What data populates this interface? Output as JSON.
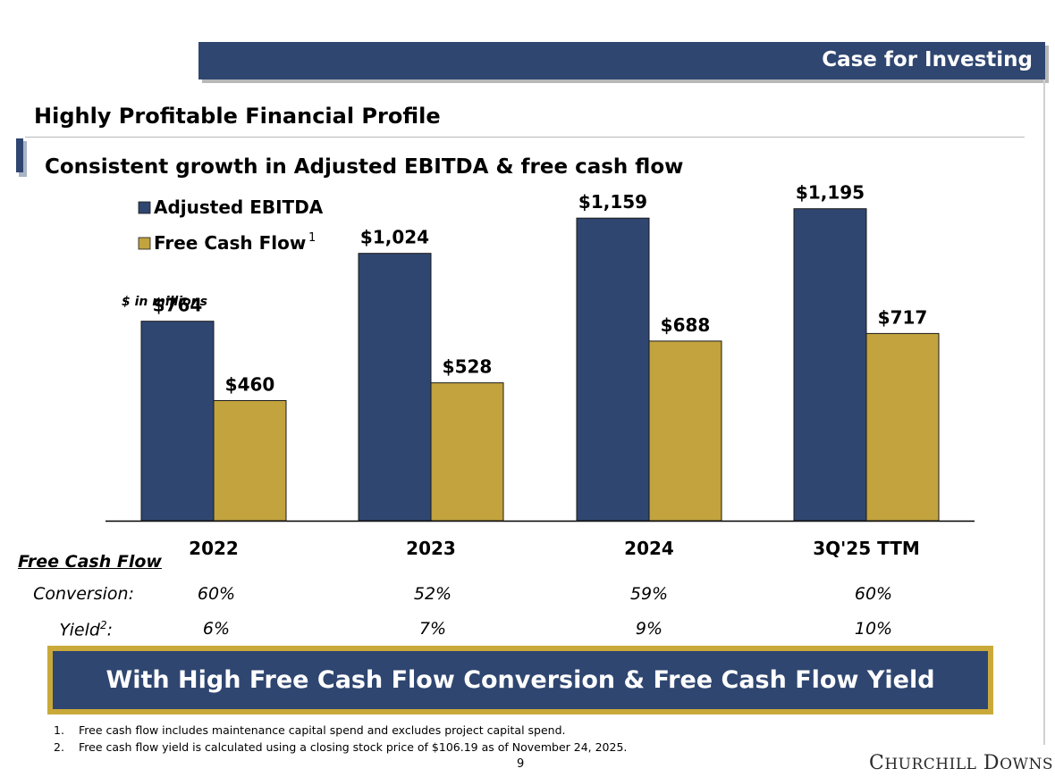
{
  "header": {
    "banner_title": "Case for Investing"
  },
  "section_title": "Highly Profitable Financial Profile",
  "subtitle": "Consistent growth in Adjusted EBITDA & free cash flow",
  "chart_data": {
    "type": "bar",
    "unit_note": "$ in millions",
    "categories": [
      "2022",
      "2023",
      "2024",
      "3Q'25 TTM"
    ],
    "series": [
      {
        "name": "Adjusted EBITDA",
        "values": [
          764,
          1024,
          1159,
          1195
        ],
        "labels": [
          "$764",
          "$1,024",
          "$1,159",
          "$1,195"
        ],
        "color": "#2f4670"
      },
      {
        "name": "Free Cash Flow",
        "superscript": "1",
        "values": [
          460,
          528,
          688,
          717
        ],
        "labels": [
          "$460",
          "$528",
          "$688",
          "$717"
        ],
        "color": "#c2a33d"
      }
    ],
    "legend_position": "top-left",
    "ylim": [
      0,
      1300
    ],
    "grid": false
  },
  "metrics": {
    "heading": "Free Cash Flow",
    "conversion_label": "Conversion:",
    "yield_label": "Yield",
    "yield_superscript": "2",
    "yield_suffix": ":",
    "conversion": [
      "60%",
      "52%",
      "59%",
      "60%"
    ],
    "yield": [
      "6%",
      "7%",
      "9%",
      "10%"
    ]
  },
  "callout": "With High Free Cash Flow Conversion & Free Cash Flow Yield",
  "footnotes": [
    {
      "num": "1.",
      "text": "Free cash flow includes maintenance capital spend and excludes project capital spend."
    },
    {
      "num": "2.",
      "text": "Free cash flow yield is calculated using a closing stock price of $106.19 as of November 24, 2025."
    }
  ],
  "page_number": "9",
  "logo": {
    "word1_initial": "C",
    "word1_rest": "HURCHILL",
    "word2_initial": "D",
    "word2_rest": "OWNS"
  },
  "colors": {
    "navy": "#2f4670",
    "gold": "#c2a33d",
    "callout_border": "#c9a93a"
  }
}
